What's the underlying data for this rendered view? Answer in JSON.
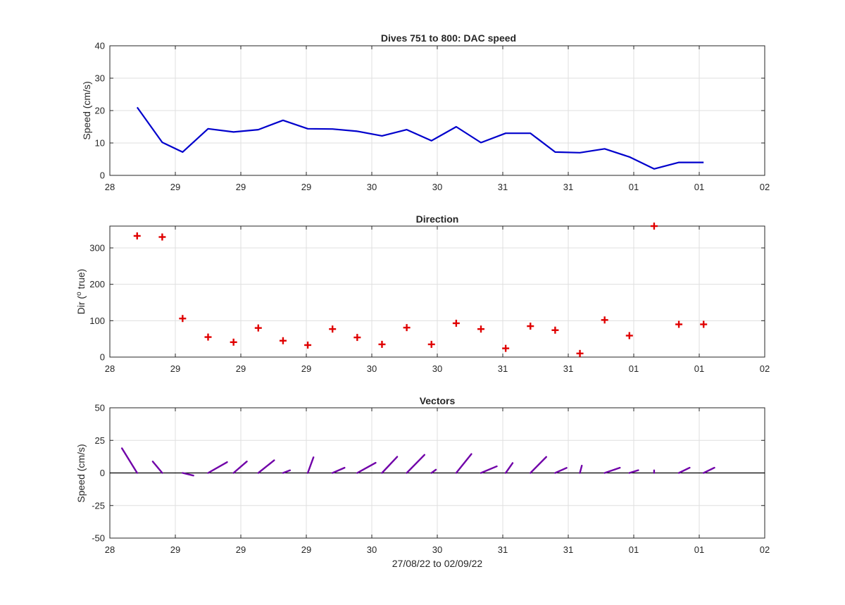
{
  "chart_data": [
    {
      "type": "line",
      "title": "Dives 751 to 800: DAC speed",
      "xlabel": "",
      "ylabel": "Speed (cm/s)",
      "xlim": [
        0,
        9
      ],
      "x_tick_labels": [
        "28",
        "29",
        "29",
        "29",
        "30",
        "30",
        "31",
        "31",
        "01",
        "01",
        "02"
      ],
      "ylim": [
        0,
        40
      ],
      "y_ticks": [
        0,
        10,
        20,
        30,
        40
      ],
      "grid": true,
      "color": "#0000cc",
      "series": [
        {
          "x": [
            0.375,
            0.72,
            1.0,
            1.35,
            1.7,
            2.04,
            2.38,
            2.72,
            3.06,
            3.4,
            3.74,
            4.08,
            4.42,
            4.76,
            5.1,
            5.44,
            5.78,
            6.12,
            6.46,
            6.8,
            7.14,
            7.48,
            7.82,
            8.16
          ],
          "values": [
            21,
            10.2,
            7.2,
            14.4,
            13.4,
            14.1,
            17,
            14.4,
            14.3,
            13.6,
            12.2,
            14.1,
            10.7,
            15,
            10.1,
            13,
            13,
            7.2,
            7,
            8.2,
            5.7,
            2,
            4,
            4
          ]
        }
      ]
    },
    {
      "type": "scatter",
      "title": "Direction",
      "xlabel": "",
      "ylabel": "Dir (o true)",
      "ylabel_parts": [
        "Dir (",
        "o",
        " true)"
      ],
      "xlim": [
        0,
        9
      ],
      "x_tick_labels": [
        "28",
        "29",
        "29",
        "29",
        "30",
        "30",
        "31",
        "31",
        "01",
        "01",
        "02"
      ],
      "ylim": [
        0,
        360
      ],
      "y_ticks": [
        0,
        100,
        200,
        300
      ],
      "grid": true,
      "color": "#e00000",
      "marker": "+",
      "series": [
        {
          "x": [
            0.375,
            0.72,
            1.0,
            1.35,
            1.7,
            2.04,
            2.38,
            2.72,
            3.06,
            3.4,
            3.74,
            4.08,
            4.42,
            4.76,
            5.1,
            5.44,
            5.78,
            6.12,
            6.46,
            6.8,
            7.14,
            7.48,
            7.82,
            8.16
          ],
          "values": [
            333,
            330,
            106,
            55,
            41,
            80,
            45,
            33,
            77,
            54,
            35,
            81,
            35,
            93,
            77,
            24,
            85,
            74,
            10,
            102,
            59,
            360,
            90,
            90
          ]
        }
      ]
    },
    {
      "type": "quiver",
      "title": "Vectors",
      "xlabel": "27/08/22 to 02/09/22",
      "ylabel": "Speed (cm/s)",
      "xlim": [
        0,
        9
      ],
      "x_tick_labels": [
        "28",
        "29",
        "29",
        "29",
        "30",
        "30",
        "31",
        "31",
        "01",
        "01",
        "02"
      ],
      "ylim": [
        -50,
        50
      ],
      "y_ticks": [
        -50,
        -25,
        0,
        25,
        50
      ],
      "grid": true,
      "color": "#7000a8",
      "baseline": 0,
      "note": "Each vector starts at (x, 0) and points in the direction shown, with length equal to the speed.",
      "vectors": {
        "x": [
          0.375,
          0.72,
          1.0,
          1.35,
          1.7,
          2.04,
          2.38,
          2.72,
          3.06,
          3.4,
          3.74,
          4.08,
          4.42,
          4.76,
          5.1,
          5.44,
          5.78,
          6.12,
          6.46,
          6.8,
          7.14,
          7.48,
          7.82,
          8.16
        ],
        "u": [
          -2.4,
          -1.5,
          1.7,
          3.0,
          2.1,
          2.5,
          1.1,
          0.9,
          1.9,
          2.9,
          2.4,
          2.8,
          0.7,
          2.4,
          2.5,
          1.1,
          2.5,
          1.8,
          0.3,
          2.4,
          1.4,
          0,
          1.7,
          1.7
        ],
        "v": [
          18.9,
          8.8,
          -2.0,
          8.3,
          8.8,
          9.7,
          2.0,
          12.0,
          4.0,
          7.8,
          12.4,
          13.9,
          2.5,
          14.5,
          5.1,
          7.6,
          12.3,
          3.9,
          5.6,
          4.0,
          2.1,
          2.0,
          4.0,
          4.0
        ]
      }
    }
  ]
}
